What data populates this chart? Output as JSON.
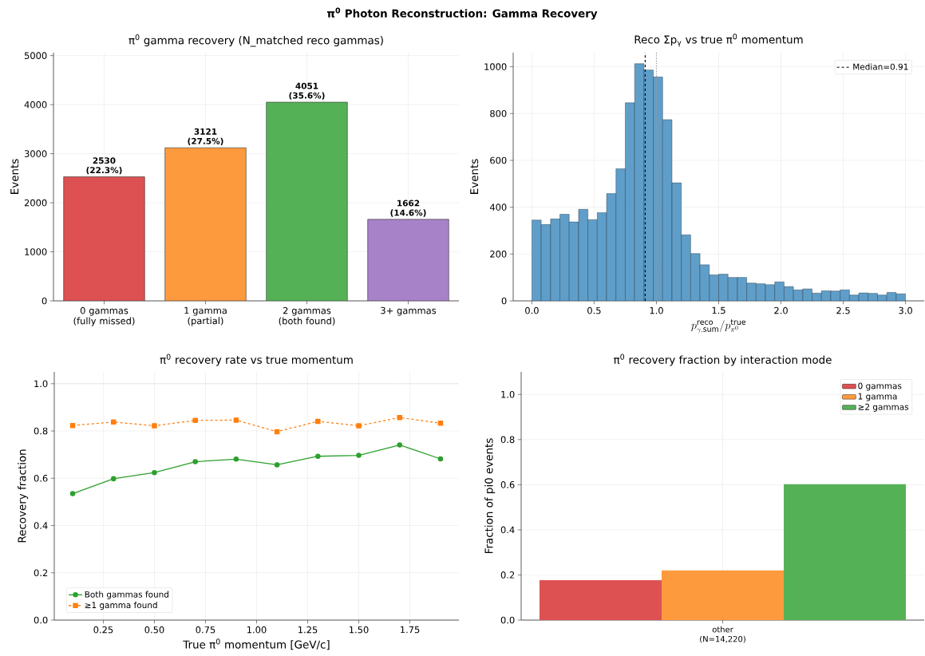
{
  "chart_data": [
    {
      "type": "bar",
      "title": "π$^{0}$ gamma recovery (N_matched reco gammas)",
      "ylabel": "Events",
      "annotations": [
        "π$^{0}$ Photon Reconstruction: Gamma Recovery"
      ],
      "categories": [
        "0 gammas (fully missed)",
        "1 gamma (partial)",
        "2 gammas (both found)",
        "3+ gammas"
      ],
      "values": [
        2530,
        3121,
        4051,
        1662
      ],
      "colors": [
        "#dd5152",
        "#fd9a3e",
        "#55b155",
        "#a882c8"
      ],
      "value_labels": [
        "2530 (22.3%)",
        "3121 (27.5%)",
        "4051 (35.6%)",
        "1662 (14.6%)"
      ],
      "ylim": [
        0,
        5060
      ],
      "yticks": [
        0,
        1000,
        2000,
        3000,
        4000,
        5000
      ],
      "grid": true
    },
    {
      "type": "histogram",
      "title": "Reco Σp$_{γ}$ vs true π$^{0}$ momentum",
      "xlabel": "p^{\\mathrm{reco}}_{\\gamma,\\mathrm{sum}}/p^{\\mathrm{true}}_{\\pi^0}",
      "ylabel": "Events",
      "bins": [
        0,
        0.075,
        0.15,
        0.225,
        0.3,
        0.375,
        0.45,
        0.525,
        0.6,
        0.675,
        0.75,
        0.825,
        0.9,
        0.975,
        1.05,
        1.125,
        1.2,
        1.275,
        1.35,
        1.425,
        1.5,
        1.575,
        1.65,
        1.725,
        1.8,
        1.875,
        1.95,
        2.025,
        2.1,
        2.175,
        2.25,
        2.325,
        2.4,
        2.475,
        2.55,
        2.625,
        2.7,
        2.775,
        2.85,
        2.925,
        3.0
      ],
      "values": [
        345,
        326,
        350,
        370,
        337,
        391,
        347,
        377,
        458,
        564,
        846,
        1013,
        986,
        956,
        774,
        504,
        282,
        202,
        154,
        111,
        114,
        100,
        100,
        76,
        73,
        69,
        81,
        61,
        47,
        51,
        33,
        43,
        42,
        47,
        25,
        34,
        32,
        25,
        36,
        30
      ],
      "color": "#5f9ec9",
      "ref_lines": [
        {
          "axis": "x",
          "value": 0.91,
          "label": "Median=0.91",
          "color": "#000000",
          "line_style": "dashed"
        },
        {
          "axis": "x",
          "value": 1.0,
          "color": "#999999",
          "line_style": "dotted"
        }
      ],
      "xlim": [
        -0.15,
        3.15
      ],
      "ylim": [
        0,
        1060
      ],
      "xticks": [
        {
          "value": 0,
          "label": "0.0"
        },
        {
          "value": 0.5,
          "label": "0.5"
        },
        {
          "value": 1.0,
          "label": "1.0"
        },
        {
          "value": 1.5,
          "label": "1.5"
        },
        {
          "value": 2.0,
          "label": "2.0"
        },
        {
          "value": 2.5,
          "label": "2.5"
        },
        {
          "value": 3.0,
          "label": "3.0"
        }
      ],
      "yticks": [
        0,
        200,
        400,
        600,
        800,
        1000
      ],
      "grid": true,
      "legend": "top right"
    },
    {
      "type": "line",
      "title": "π$^{0}$ recovery rate vs true momentum",
      "xlabel": "True π$^{0}$ momentum [GeV/c]",
      "ylabel": "Recovery fraction",
      "x": [
        0.1,
        0.3,
        0.5,
        0.7,
        0.9,
        1.1,
        1.3,
        1.5,
        1.7,
        1.9
      ],
      "series": [
        {
          "name": "Both gammas found",
          "color": "#2ca02c",
          "marker": "circle",
          "line_style": "solid",
          "values": [
            0.535,
            0.598,
            0.624,
            0.67,
            0.681,
            0.657,
            0.693,
            0.697,
            0.741,
            0.682
          ]
        },
        {
          "name": "≥1 gamma found",
          "color": "#ff7f0e",
          "marker": "square",
          "line_style": "dashed",
          "values": [
            0.823,
            0.838,
            0.822,
            0.845,
            0.846,
            0.797,
            0.841,
            0.822,
            0.857,
            0.833
          ]
        }
      ],
      "ref_lines": [
        {
          "axis": "y",
          "value": 1.0,
          "color": "#999999",
          "line_style": "dotted"
        }
      ],
      "xlim": [
        0.01,
        1.99
      ],
      "ylim": [
        0,
        1.05
      ],
      "xticks": [
        {
          "value": 0.25,
          "label": "0.25"
        },
        {
          "value": 0.5,
          "label": "0.50"
        },
        {
          "value": 0.75,
          "label": "0.75"
        },
        {
          "value": 1.0,
          "label": "1.00"
        },
        {
          "value": 1.25,
          "label": "1.25"
        },
        {
          "value": 1.5,
          "label": "1.50"
        },
        {
          "value": 1.75,
          "label": "1.75"
        }
      ],
      "yticks": [
        {
          "value": 0,
          "label": "0.0"
        },
        {
          "value": 0.2,
          "label": "0.2"
        },
        {
          "value": 0.4,
          "label": "0.4"
        },
        {
          "value": 0.6,
          "label": "0.6"
        },
        {
          "value": 0.8,
          "label": "0.8"
        },
        {
          "value": 1.0,
          "label": "1.0"
        }
      ],
      "grid": true,
      "legend": "bottom left"
    },
    {
      "type": "bar",
      "title": "π$^{0}$ recovery fraction by interaction mode",
      "ylabel": "Fraction of pi0 events",
      "categories": [
        "other (N=14,220)"
      ],
      "series": [
        {
          "name": "0 gammas",
          "color": "#dd5152",
          "values": [
            0.177
          ]
        },
        {
          "name": "1 gamma",
          "color": "#fd9a3e",
          "values": [
            0.22
          ]
        },
        {
          "name": "≥2 gammas",
          "color": "#55b155",
          "values": [
            0.602
          ]
        }
      ],
      "ylim": [
        0,
        1.1
      ],
      "yticks": [
        {
          "value": 0,
          "label": "0.0"
        },
        {
          "value": 0.2,
          "label": "0.2"
        },
        {
          "value": 0.4,
          "label": "0.4"
        },
        {
          "value": 0.6,
          "label": "0.6"
        },
        {
          "value": 0.8,
          "label": "0.8"
        },
        {
          "value": 1.0,
          "label": "1.0"
        }
      ],
      "grid": true,
      "legend": "top right"
    }
  ]
}
